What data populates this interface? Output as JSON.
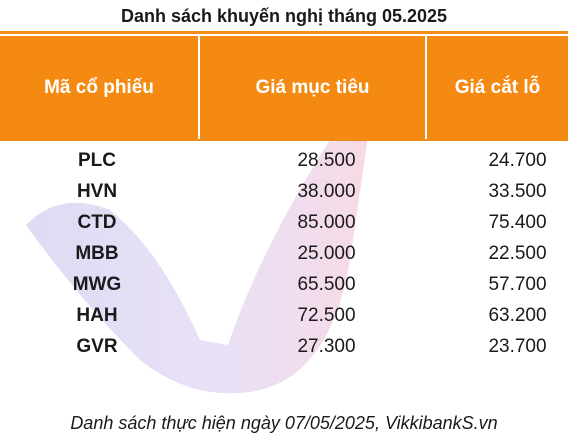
{
  "title": "Danh sách khuyến nghị tháng 05.2025",
  "columns": [
    "Mã cổ phiếu",
    "Giá mục tiêu",
    "Giá cắt lỗ"
  ],
  "rows": [
    {
      "code": "PLC",
      "target": "28.500",
      "stop": "24.700"
    },
    {
      "code": "HVN",
      "target": "38.000",
      "stop": "33.500"
    },
    {
      "code": "CTD",
      "target": "85.000",
      "stop": "75.400"
    },
    {
      "code": "MBB",
      "target": "25.000",
      "stop": "22.500"
    },
    {
      "code": "MWG",
      "target": "65.500",
      "stop": "57.700"
    },
    {
      "code": "HAH",
      "target": "72.500",
      "stop": "63.200"
    },
    {
      "code": "GVR",
      "target": "27.300",
      "stop": "23.700"
    }
  ],
  "footer": "Danh sách thực hiện ngày 07/05/2025, VikkibankS.vn",
  "colors": {
    "header_bg": "#f58a12",
    "header_text": "#ffffff",
    "watermark_purple": "#6a5acd",
    "watermark_pink": "#e87aa0"
  },
  "watermark": "checkmark-logo"
}
